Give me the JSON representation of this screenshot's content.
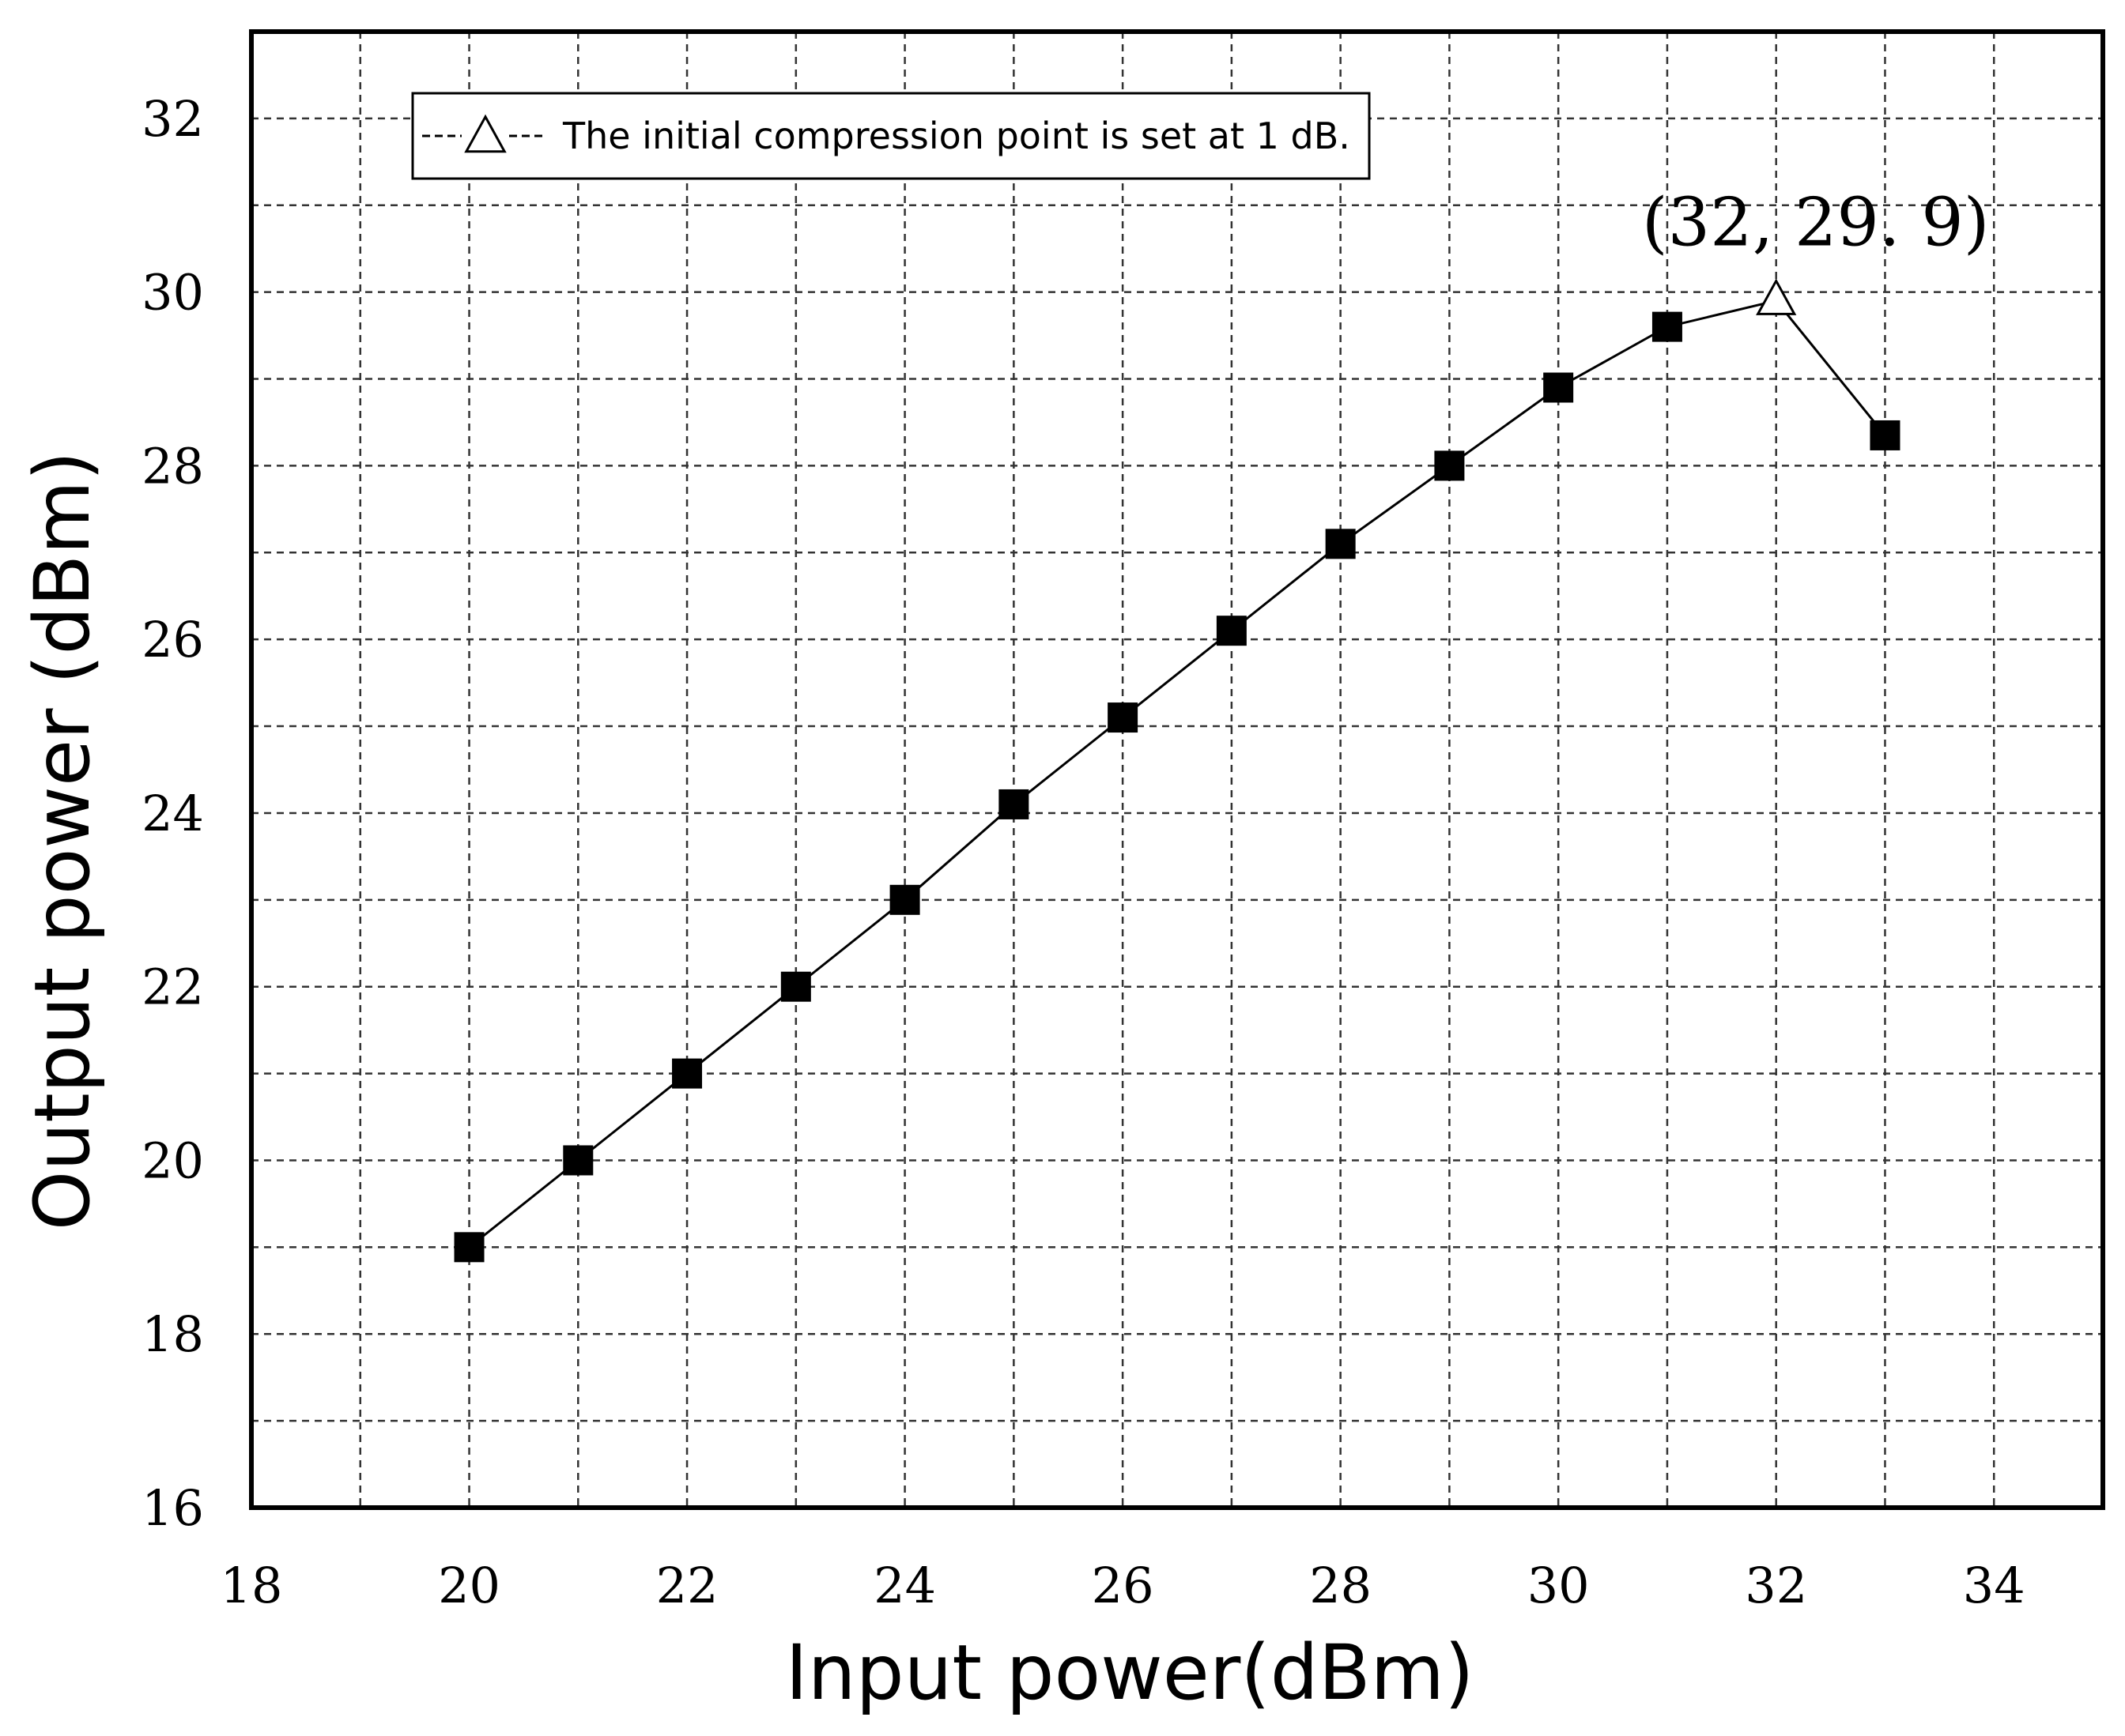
{
  "chart_data": {
    "type": "line",
    "xlabel": "Input power(dBm)",
    "ylabel": "Output power (dBm)",
    "xlim": [
      18,
      35
    ],
    "ylim": [
      16,
      33
    ],
    "xticks": [
      18,
      20,
      22,
      24,
      26,
      28,
      30,
      32,
      34
    ],
    "yticks": [
      16,
      18,
      20,
      22,
      24,
      26,
      28,
      30,
      32
    ],
    "grid": true,
    "grid_style": "dashed",
    "x": [
      20,
      21,
      22,
      23,
      24,
      25,
      26,
      27,
      28,
      29,
      30,
      31,
      32,
      33
    ],
    "y": [
      19.0,
      20.0,
      21.0,
      22.0,
      23.0,
      24.1,
      25.1,
      26.1,
      27.1,
      28.0,
      28.9,
      29.6,
      29.9,
      28.35
    ],
    "markers": [
      "square",
      "square",
      "square",
      "square",
      "square",
      "square",
      "square",
      "square",
      "square",
      "square",
      "square",
      "square",
      "triangle",
      "square"
    ],
    "legend": {
      "placement": "top-left",
      "entries": [
        {
          "label": "The initial compression point is set at 1 dB.",
          "marker": "triangle",
          "line": "dashed"
        }
      ]
    },
    "annotations": [
      {
        "text": "(32, 29. 9)",
        "x": 32,
        "y": 29.9
      }
    ]
  }
}
